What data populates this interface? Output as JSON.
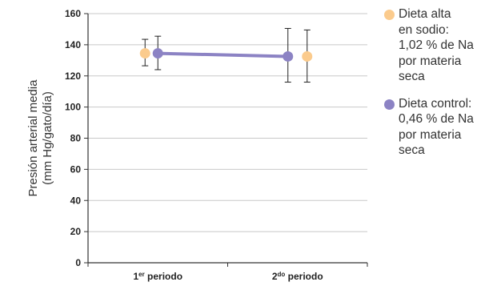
{
  "chart_data": {
    "type": "line",
    "categories": [
      "1er periodo",
      "2do periodo"
    ],
    "category_labels": [
      {
        "main": "1",
        "sup": "er",
        "rest": " periodo"
      },
      {
        "main": "2",
        "sup": "do",
        "rest": " periodo"
      }
    ],
    "ylabel_lines": [
      "Presión arterial media",
      "(mm Hg/gato/día)"
    ],
    "ylim": [
      0,
      160
    ],
    "yticks": [
      0,
      20,
      40,
      60,
      80,
      100,
      120,
      140,
      160
    ],
    "grid": true,
    "legend_position": "right",
    "series": [
      {
        "name_lines": [
          "Dieta alta",
          "en sodio:",
          "1,02 % de Na",
          "por materia",
          "seca"
        ],
        "color": "#FBCB8D",
        "values": [
          134.5,
          132.5
        ],
        "err_low": [
          126.5,
          116
        ],
        "err_high": [
          143.5,
          149.5
        ],
        "connected": false
      },
      {
        "name_lines": [
          "Dieta control:",
          "0,46 % de Na",
          "por materia",
          "seca"
        ],
        "color": "#8C83C4",
        "line_color": "#8C83C4",
        "values": [
          134.5,
          132.5
        ],
        "err_low": [
          124,
          116
        ],
        "err_high": [
          145.5,
          150.5
        ],
        "connected": true
      }
    ]
  }
}
